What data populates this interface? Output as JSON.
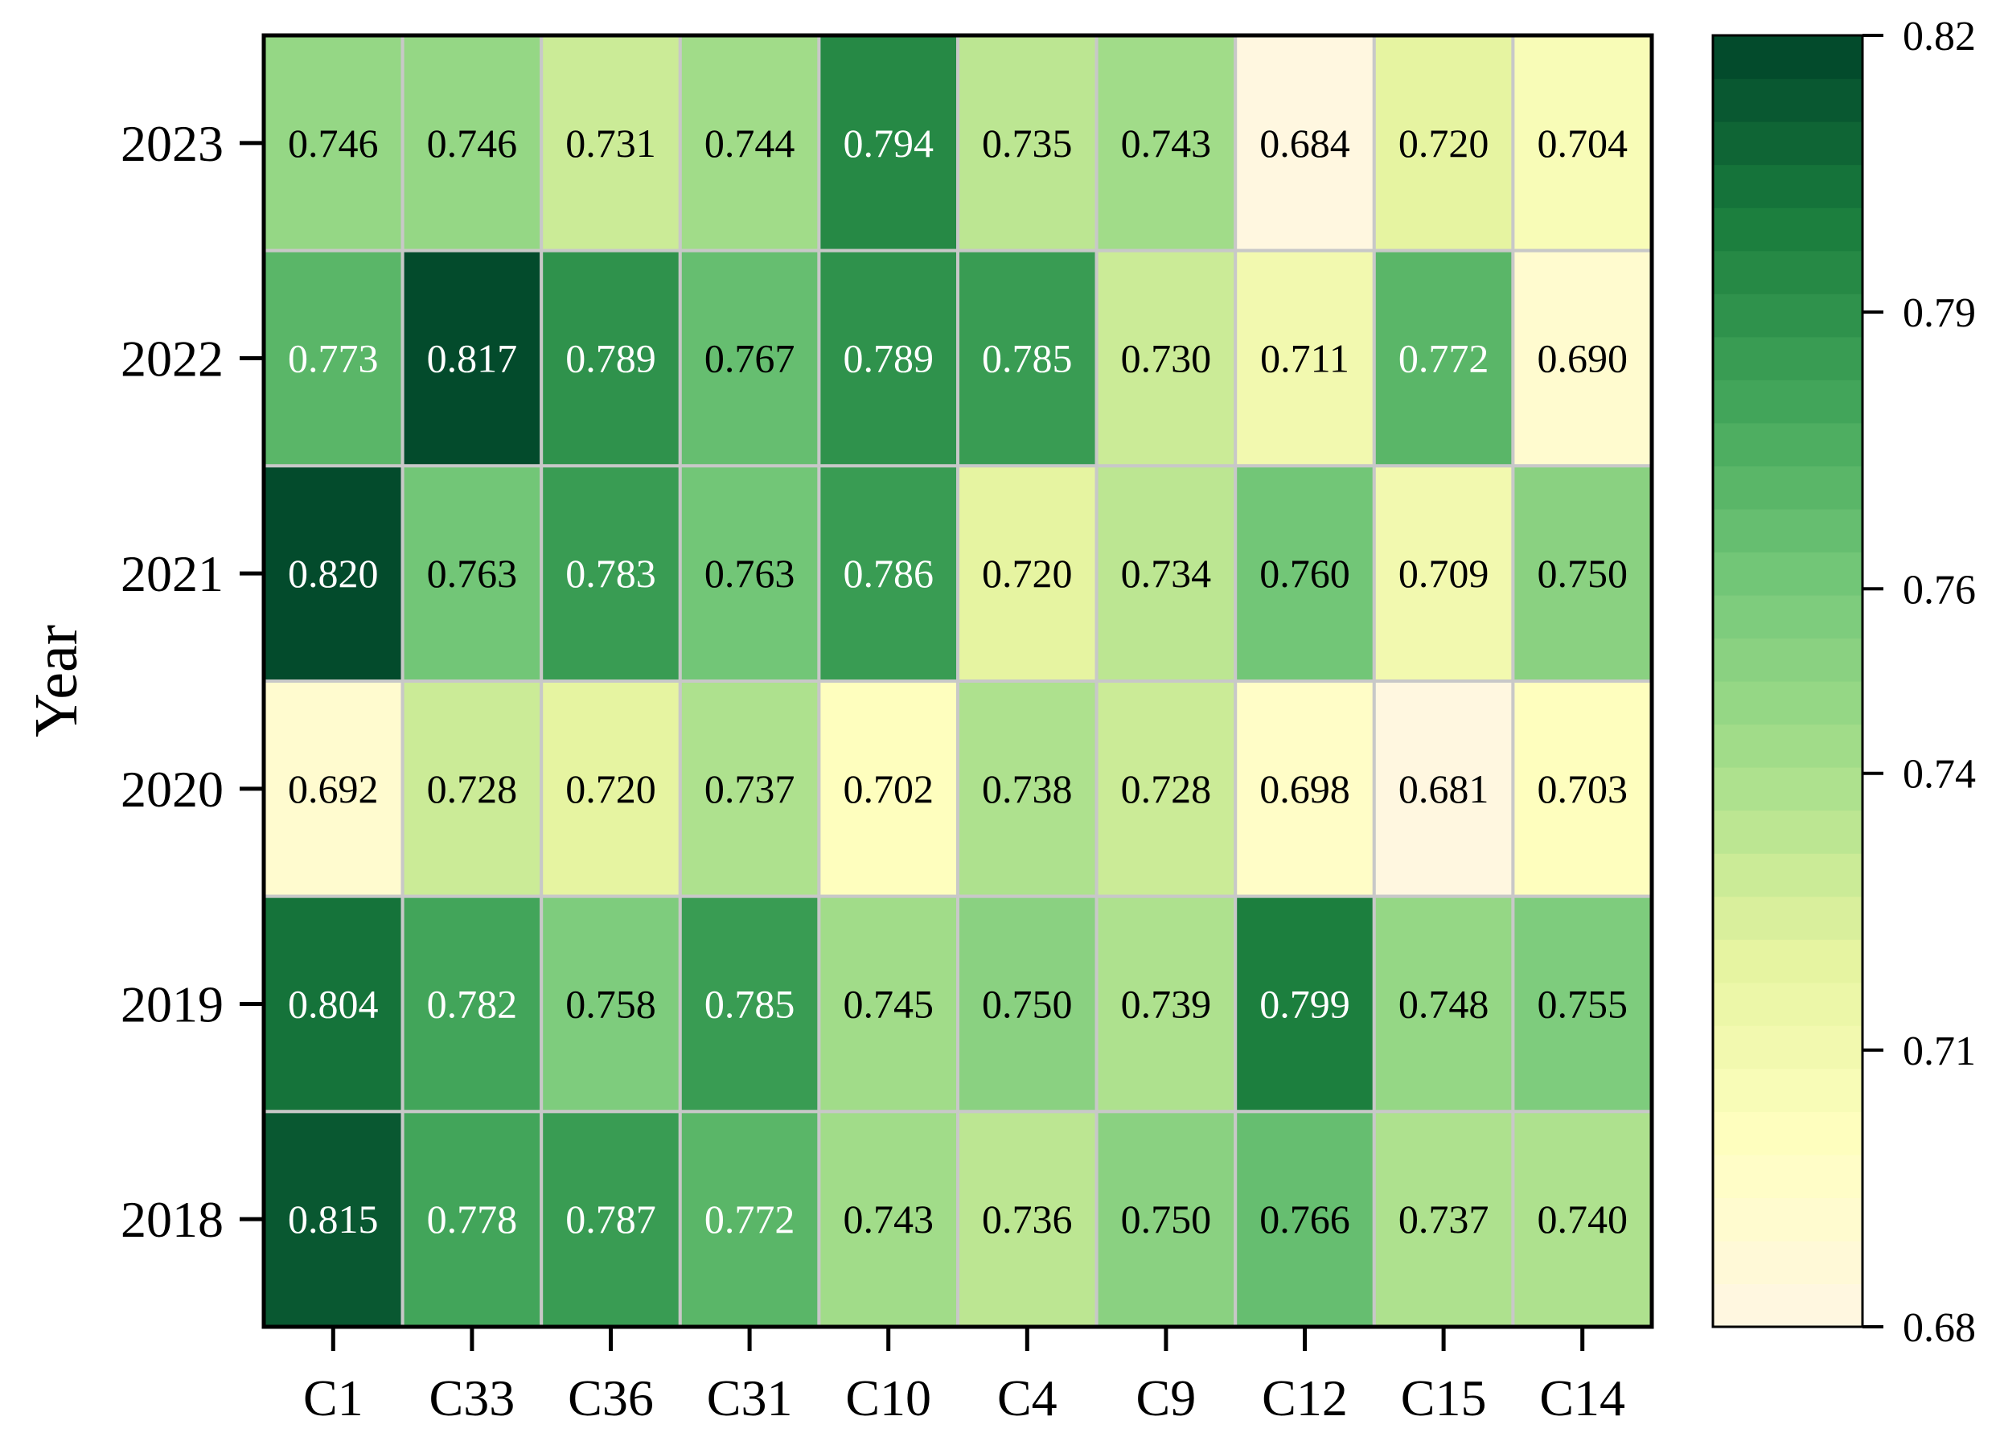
{
  "chart_data": {
    "type": "heatmap",
    "title": "",
    "xlabel": "",
    "ylabel": "Year",
    "x_categories": [
      "C1",
      "C33",
      "C36",
      "C31",
      "C10",
      "C4",
      "C9",
      "C12",
      "C15",
      "C14"
    ],
    "y_categories": [
      "2023",
      "2022",
      "2021",
      "2020",
      "2019",
      "2018"
    ],
    "values": [
      [
        0.746,
        0.746,
        0.731,
        0.744,
        0.794,
        0.735,
        0.743,
        0.684,
        0.72,
        0.704
      ],
      [
        0.773,
        0.817,
        0.789,
        0.767,
        0.789,
        0.785,
        0.73,
        0.711,
        0.772,
        0.69
      ],
      [
        0.82,
        0.763,
        0.783,
        0.763,
        0.786,
        0.72,
        0.734,
        0.76,
        0.709,
        0.75
      ],
      [
        0.692,
        0.728,
        0.72,
        0.737,
        0.702,
        0.738,
        0.728,
        0.698,
        0.681,
        0.703
      ],
      [
        0.804,
        0.782,
        0.758,
        0.785,
        0.745,
        0.75,
        0.739,
        0.799,
        0.748,
        0.755
      ],
      [
        0.815,
        0.778,
        0.787,
        0.772,
        0.743,
        0.736,
        0.75,
        0.766,
        0.737,
        0.74
      ]
    ],
    "value_format": "0.000",
    "colorbar": {
      "min": 0.68,
      "max": 0.82,
      "ticks": [
        "0.68",
        "0.71",
        "0.74",
        "0.76",
        "0.79",
        "0.82"
      ],
      "levels": 30,
      "colormap": "YlGn",
      "placement": "right"
    },
    "colors": {
      "cell_border": "#c8c8c8",
      "frame": "#000000",
      "stops": [
        "#fff6e4",
        "#ffffc0",
        "#e6f4a0",
        "#a9df8c",
        "#76c97a",
        "#43a65a",
        "#1a7d3d",
        "#00442a"
      ]
    }
  }
}
